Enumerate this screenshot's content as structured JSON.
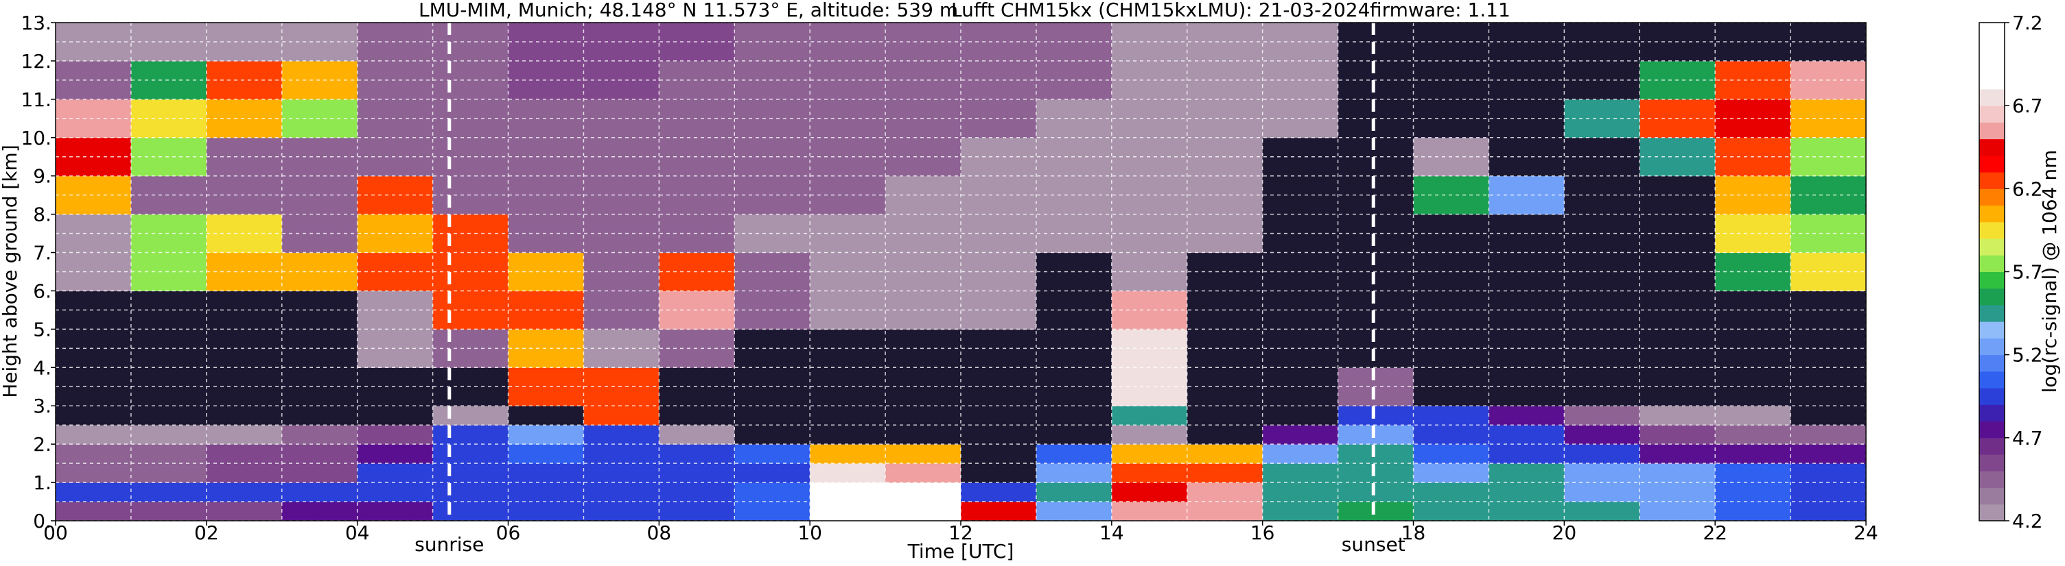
{
  "chart_data": {
    "type": "heatmap",
    "title_location": "LMU-MIM, Munich; 48.148° N 11.573° E, altitude: 539 m",
    "title_instrument": "Lufft CHM15kx (CHM15kxLMU): 21-03-2024",
    "title_firmware": "firmware: 1.11",
    "xlabel": "Time [UTC]",
    "ylabel": "Height above ground [km]",
    "colorbar_label": "log(rc-signal) @ 1064 nm",
    "xlim": [
      0,
      24
    ],
    "ylim": [
      0,
      13
    ],
    "clim": [
      4.2,
      7.2
    ],
    "xticks": [
      {
        "value": 0,
        "label": "00"
      },
      {
        "value": 2,
        "label": "02"
      },
      {
        "value": 4,
        "label": "04"
      },
      {
        "value": 6,
        "label": "06"
      },
      {
        "value": 8,
        "label": "08"
      },
      {
        "value": 10,
        "label": "10"
      },
      {
        "value": 12,
        "label": "12"
      },
      {
        "value": 14,
        "label": "14"
      },
      {
        "value": 16,
        "label": "16"
      },
      {
        "value": 18,
        "label": "18"
      },
      {
        "value": 20,
        "label": "20"
      },
      {
        "value": 22,
        "label": "22"
      },
      {
        "value": 24,
        "label": "24"
      }
    ],
    "yticks": [
      {
        "value": 0,
        "label": "0."
      },
      {
        "value": 1,
        "label": "1."
      },
      {
        "value": 2,
        "label": "2."
      },
      {
        "value": 3,
        "label": "3."
      },
      {
        "value": 4,
        "label": "4."
      },
      {
        "value": 5,
        "label": "5."
      },
      {
        "value": 6,
        "label": "6."
      },
      {
        "value": 7,
        "label": "7."
      },
      {
        "value": 8,
        "label": "8."
      },
      {
        "value": 9,
        "label": "9."
      },
      {
        "value": 10,
        "label": "10."
      },
      {
        "value": 11,
        "label": "11."
      },
      {
        "value": 12,
        "label": "12."
      },
      {
        "value": 13,
        "label": "13."
      }
    ],
    "cticks": [
      4.2,
      4.7,
      5.2,
      5.7,
      6.2,
      6.7,
      7.2
    ],
    "xgrid": [
      0,
      1,
      2,
      3,
      4,
      5,
      6,
      7,
      8,
      9,
      10,
      11,
      12,
      13,
      14,
      15,
      16,
      17,
      18,
      19,
      20,
      21,
      22,
      23,
      24
    ],
    "ygrid": [
      0,
      0.5,
      1,
      1.5,
      2,
      2.5,
      3,
      3.5,
      4,
      4.5,
      5,
      5.5,
      6,
      6.5,
      7,
      7.5,
      8,
      8.5,
      9,
      9.5,
      10,
      10.5,
      11,
      11.5,
      12,
      12.5,
      13
    ],
    "grid_color": "#ffffff",
    "colors": [
      "#a994ab",
      "#9a7c9e",
      "#8e6394",
      "#80478c",
      "#702e88",
      "#5a0f90",
      "#3c20b0",
      "#2a40d8",
      "#3060f0",
      "#5080f4",
      "#70a0f8",
      "#90bcfa",
      "#2a9a8c",
      "#1aa050",
      "#30c040",
      "#90e850",
      "#d0f060",
      "#f5e030",
      "#ffb000",
      "#ff8000",
      "#ff4000",
      "#ff0000",
      "#e80000",
      "#f0a0a0",
      "#f4c8c8",
      "#f0e0e0",
      "#ffffff",
      "#ffffff",
      "#ffffff",
      "#ffffff"
    ],
    "under_color": "#1d1832",
    "xbins": [
      0,
      1,
      2,
      3,
      4,
      5,
      6,
      7,
      8,
      9,
      10,
      11,
      12,
      13,
      14,
      15,
      16,
      17,
      18,
      19,
      20,
      21,
      22,
      23,
      24
    ],
    "ybins": [
      0,
      0.5,
      1,
      1.5,
      2,
      2.5,
      3,
      4,
      5,
      6,
      7,
      8,
      9,
      10,
      11,
      12,
      13
    ],
    "values": [
      [
        4.6,
        4.6,
        4.6,
        4.7,
        4.8,
        4.9,
        5.0,
        5.0,
        5.0,
        5.1,
        7.0,
        7.0,
        6.4,
        5.3,
        6.5,
        6.6,
        5.5,
        5.6,
        5.5,
        5.5,
        5.4,
        5.2,
        5.1,
        5.0
      ],
      [
        4.9,
        4.9,
        4.9,
        4.9,
        4.9,
        5.0,
        5.0,
        5.0,
        5.0,
        5.1,
        7.0,
        6.9,
        5.0,
        5.4,
        6.4,
        6.5,
        5.5,
        5.5,
        5.5,
        5.5,
        5.3,
        5.2,
        5.1,
        5.0
      ],
      [
        4.5,
        4.5,
        4.6,
        4.6,
        4.9,
        5.0,
        5.0,
        5.0,
        5.0,
        5.0,
        6.8,
        6.6,
        4.0,
        5.2,
        6.3,
        6.3,
        5.4,
        5.5,
        5.3,
        5.4,
        5.3,
        5.2,
        5.1,
        5.0
      ],
      [
        4.4,
        4.4,
        4.6,
        4.6,
        4.8,
        5.0,
        5.1,
        5.0,
        5.0,
        5.1,
        6.0,
        6.0,
        4.0,
        5.1,
        6.0,
        6.0,
        5.3,
        5.4,
        5.1,
        5.0,
        4.9,
        4.8,
        4.7,
        4.8
      ],
      [
        4.3,
        4.3,
        4.3,
        4.4,
        4.6,
        5.0,
        5.2,
        4.9,
        4.2,
        4.0,
        4.0,
        4.0,
        4.0,
        4.0,
        4.3,
        4.0,
        4.8,
        5.2,
        5.0,
        4.9,
        4.8,
        4.6,
        4.5,
        4.4
      ],
      [
        4.0,
        4.0,
        4.0,
        4.0,
        4.1,
        4.3,
        4.1,
        6.2,
        4.0,
        4.0,
        4.0,
        4.0,
        4.0,
        4.0,
        5.5,
        4.0,
        4.0,
        5.0,
        4.9,
        4.7,
        4.5,
        4.3,
        4.2,
        4.0
      ],
      [
        4.0,
        4.0,
        4.0,
        4.0,
        4.0,
        4.0,
        6.3,
        6.3,
        4.0,
        4.0,
        4.0,
        4.0,
        4.0,
        4.0,
        6.8,
        4.0,
        4.0,
        4.5,
        4.0,
        4.0,
        4.0,
        4.0,
        4.0,
        4.0
      ],
      [
        4.0,
        4.0,
        4.0,
        4.0,
        4.3,
        4.4,
        6.0,
        4.2,
        4.4,
        4.0,
        4.0,
        4.0,
        4.0,
        4.0,
        6.8,
        4.0,
        4.0,
        4.0,
        4.0,
        4.0,
        4.0,
        4.0,
        4.0,
        4.0
      ],
      [
        4.0,
        4.0,
        4.0,
        4.0,
        4.3,
        6.3,
        6.2,
        4.4,
        6.5,
        4.5,
        4.2,
        4.2,
        4.2,
        4.0,
        6.5,
        4.0,
        4.0,
        4.0,
        4.0,
        4.0,
        4.0,
        4.0,
        4.0,
        4.0
      ],
      [
        4.2,
        5.8,
        6.0,
        6.1,
        6.2,
        6.3,
        6.0,
        4.4,
        6.3,
        4.4,
        4.3,
        4.3,
        4.2,
        4.1,
        4.2,
        4.1,
        4.0,
        4.0,
        4.0,
        4.0,
        4.0,
        4.0,
        5.6,
        5.9
      ],
      [
        4.2,
        5.7,
        5.9,
        4.5,
        6.1,
        6.3,
        4.4,
        4.4,
        4.4,
        4.3,
        4.3,
        4.3,
        4.3,
        4.2,
        4.2,
        4.2,
        4.1,
        4.0,
        4.0,
        4.0,
        4.0,
        4.0,
        5.9,
        5.8
      ],
      [
        6.1,
        4.5,
        4.4,
        4.4,
        6.2,
        4.5,
        4.4,
        4.4,
        4.4,
        4.4,
        4.4,
        4.3,
        4.3,
        4.2,
        4.2,
        4.2,
        4.1,
        4.0,
        5.6,
        5.3,
        4.0,
        4.0,
        6.0,
        5.6
      ],
      [
        6.4,
        5.8,
        4.4,
        4.4,
        4.4,
        4.5,
        4.5,
        4.5,
        4.5,
        4.4,
        4.4,
        4.4,
        4.3,
        4.3,
        4.3,
        4.2,
        4.1,
        4.0,
        4.2,
        4.0,
        4.0,
        5.4,
        6.2,
        5.7
      ],
      [
        6.5,
        5.9,
        6.0,
        5.8,
        4.5,
        4.5,
        4.5,
        4.5,
        4.5,
        4.5,
        4.4,
        4.4,
        4.4,
        4.3,
        4.3,
        4.2,
        4.2,
        4.0,
        4.0,
        4.0,
        5.4,
        6.3,
        6.4,
        6.0
      ],
      [
        4.4,
        5.6,
        6.2,
        6.0,
        4.4,
        4.5,
        4.6,
        4.6,
        4.5,
        4.5,
        4.5,
        4.4,
        4.4,
        4.4,
        4.3,
        4.3,
        4.2,
        4.1,
        4.1,
        4.0,
        4.0,
        5.6,
        6.3,
        6.6
      ],
      [
        4.3,
        4.3,
        4.3,
        4.3,
        4.4,
        4.5,
        4.6,
        4.6,
        4.6,
        4.5,
        4.5,
        4.5,
        4.4,
        4.4,
        4.3,
        4.3,
        4.2,
        4.1,
        4.1,
        4.0,
        4.0,
        4.0,
        4.1,
        4.0
      ]
    ],
    "annotations": [
      {
        "text": "sunrise",
        "x": 5.22
      },
      {
        "text": "sunset",
        "x": 17.47
      }
    ]
  }
}
